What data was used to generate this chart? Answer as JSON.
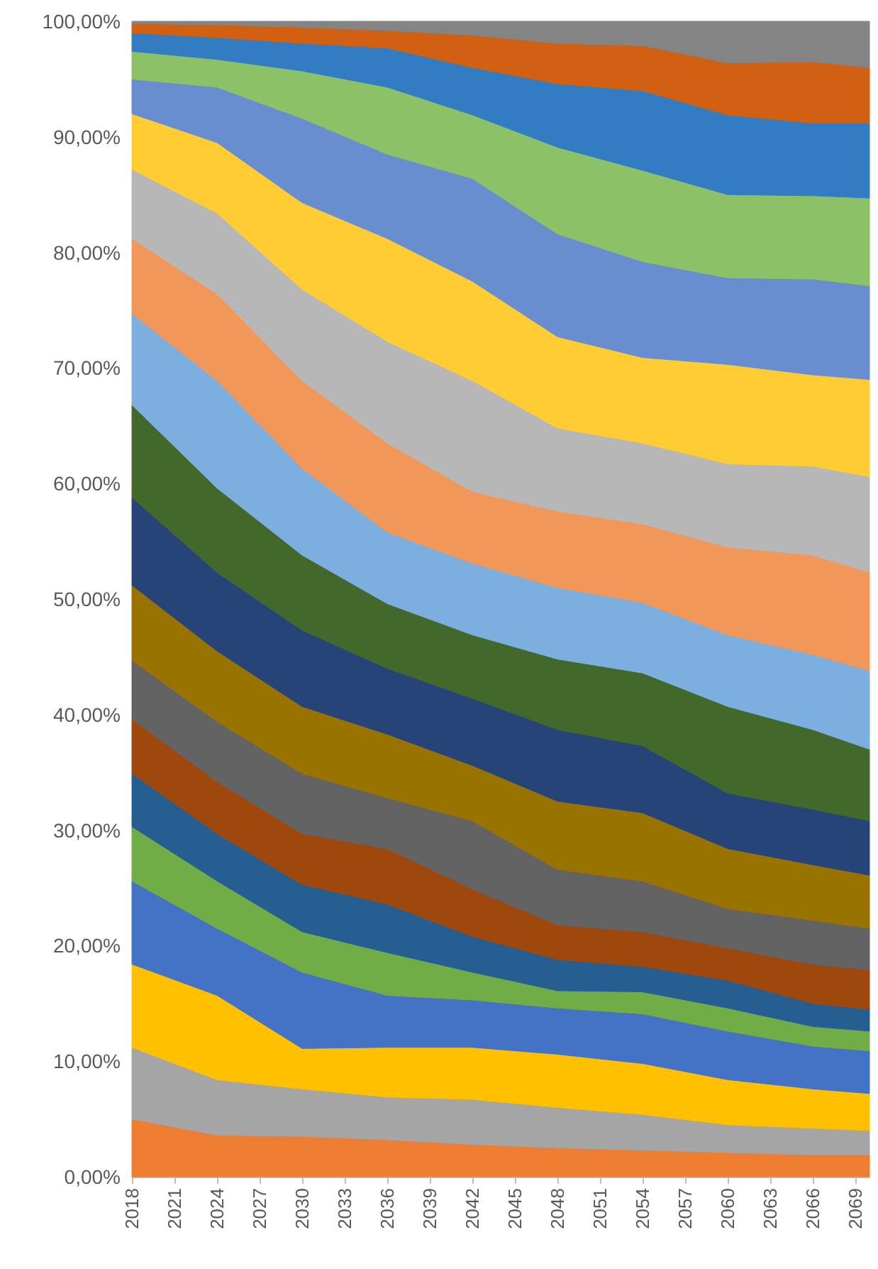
{
  "chart_data": {
    "type": "area",
    "stacked": true,
    "x": [
      2018,
      2024,
      2030,
      2036,
      2042,
      2048,
      2054,
      2060,
      2066,
      2070
    ],
    "xlim": [
      2018,
      2070
    ],
    "xticks": [
      2018,
      2021,
      2024,
      2027,
      2030,
      2033,
      2036,
      2039,
      2042,
      2045,
      2048,
      2051,
      2054,
      2057,
      2060,
      2063,
      2066,
      2069
    ],
    "ylim": [
      0,
      100
    ],
    "yticks": [
      {
        "value": 0,
        "label": "0,00%"
      },
      {
        "value": 10,
        "label": "10,00%"
      },
      {
        "value": 20,
        "label": "20,00%"
      },
      {
        "value": 30,
        "label": "30,00%"
      },
      {
        "value": 40,
        "label": "40,00%"
      },
      {
        "value": 50,
        "label": "50,00%"
      },
      {
        "value": 60,
        "label": "60,00%"
      },
      {
        "value": 70,
        "label": "70,00%"
      },
      {
        "value": 80,
        "label": "80,00%"
      },
      {
        "value": 90,
        "label": "90,00%"
      },
      {
        "value": 100,
        "label": "100,00%"
      }
    ],
    "series": [
      {
        "color": "#ed7d31",
        "values": [
          5.0,
          3.6,
          3.5,
          3.2,
          2.8,
          2.5,
          2.3,
          2.1,
          1.9,
          1.9
        ]
      },
      {
        "color": "#a5a5a5",
        "values": [
          6.2,
          4.8,
          4.1,
          3.7,
          3.9,
          3.5,
          3.1,
          2.4,
          2.3,
          2.1
        ]
      },
      {
        "color": "#ffc000",
        "values": [
          7.2,
          7.3,
          3.5,
          4.3,
          4.5,
          4.6,
          4.4,
          3.9,
          3.4,
          3.2
        ]
      },
      {
        "color": "#4472c4",
        "values": [
          7.2,
          5.8,
          6.6,
          4.5,
          4.1,
          4.0,
          4.3,
          4.2,
          3.7,
          3.7
        ]
      },
      {
        "color": "#70ad47",
        "values": [
          4.7,
          4.1,
          3.5,
          3.7,
          2.4,
          1.5,
          1.9,
          2.0,
          1.7,
          1.7
        ]
      },
      {
        "color": "#255e91",
        "values": [
          4.6,
          4.1,
          4.1,
          4.2,
          3.1,
          2.7,
          2.2,
          2.4,
          2.0,
          1.9
        ]
      },
      {
        "color": "#9e480e",
        "values": [
          4.7,
          4.5,
          4.4,
          4.8,
          4.1,
          3.0,
          3.0,
          2.8,
          3.4,
          3.4
        ]
      },
      {
        "color": "#636363",
        "values": [
          5.1,
          5.2,
          5.2,
          4.4,
          5.9,
          4.8,
          4.4,
          3.4,
          3.8,
          3.6
        ]
      },
      {
        "color": "#997300",
        "values": [
          6.5,
          6.1,
          5.8,
          5.5,
          4.8,
          5.9,
          5.9,
          5.2,
          4.8,
          4.6
        ]
      },
      {
        "color": "#264478",
        "values": [
          7.6,
          6.8,
          6.6,
          5.7,
          5.8,
          6.2,
          5.8,
          4.8,
          4.8,
          4.7
        ]
      },
      {
        "color": "#43682b",
        "values": [
          8.0,
          7.3,
          6.5,
          5.6,
          5.5,
          6.1,
          6.3,
          7.5,
          6.9,
          6.2
        ]
      },
      {
        "color": "#7cafdd",
        "values": [
          7.9,
          9.3,
          7.5,
          6.2,
          6.2,
          6.2,
          6.1,
          6.2,
          6.5,
          6.8
        ]
      },
      {
        "color": "#f1975a",
        "values": [
          6.5,
          7.5,
          7.6,
          7.7,
          6.2,
          6.6,
          6.8,
          7.6,
          8.6,
          8.5
        ]
      },
      {
        "color": "#b7b7b7",
        "values": [
          6.0,
          7.0,
          7.9,
          8.8,
          9.6,
          7.2,
          7.0,
          7.2,
          7.7,
          8.3
        ]
      },
      {
        "color": "#ffcd33",
        "values": [
          4.8,
          6.1,
          7.5,
          8.9,
          8.6,
          7.9,
          7.4,
          8.6,
          7.9,
          8.4
        ]
      },
      {
        "color": "#698ed0",
        "values": [
          3.0,
          4.8,
          7.3,
          7.3,
          8.9,
          8.9,
          8.3,
          7.5,
          8.3,
          8.1
        ]
      },
      {
        "color": "#8cc168",
        "values": [
          2.4,
          2.4,
          4.1,
          5.8,
          5.5,
          7.5,
          7.9,
          7.2,
          7.2,
          7.6
        ]
      },
      {
        "color": "#327dc2",
        "values": [
          1.6,
          1.9,
          2.4,
          3.4,
          4.1,
          5.5,
          6.9,
          6.9,
          6.3,
          6.5
        ]
      },
      {
        "color": "#d26012",
        "values": [
          0.8,
          1.1,
          1.4,
          1.5,
          2.8,
          3.5,
          3.9,
          4.5,
          5.3,
          4.8
        ]
      },
      {
        "color": "#848484",
        "values": [
          0.2,
          0.3,
          0.5,
          0.8,
          1.2,
          1.9,
          2.1,
          3.6,
          3.5,
          4.0
        ]
      }
    ]
  }
}
